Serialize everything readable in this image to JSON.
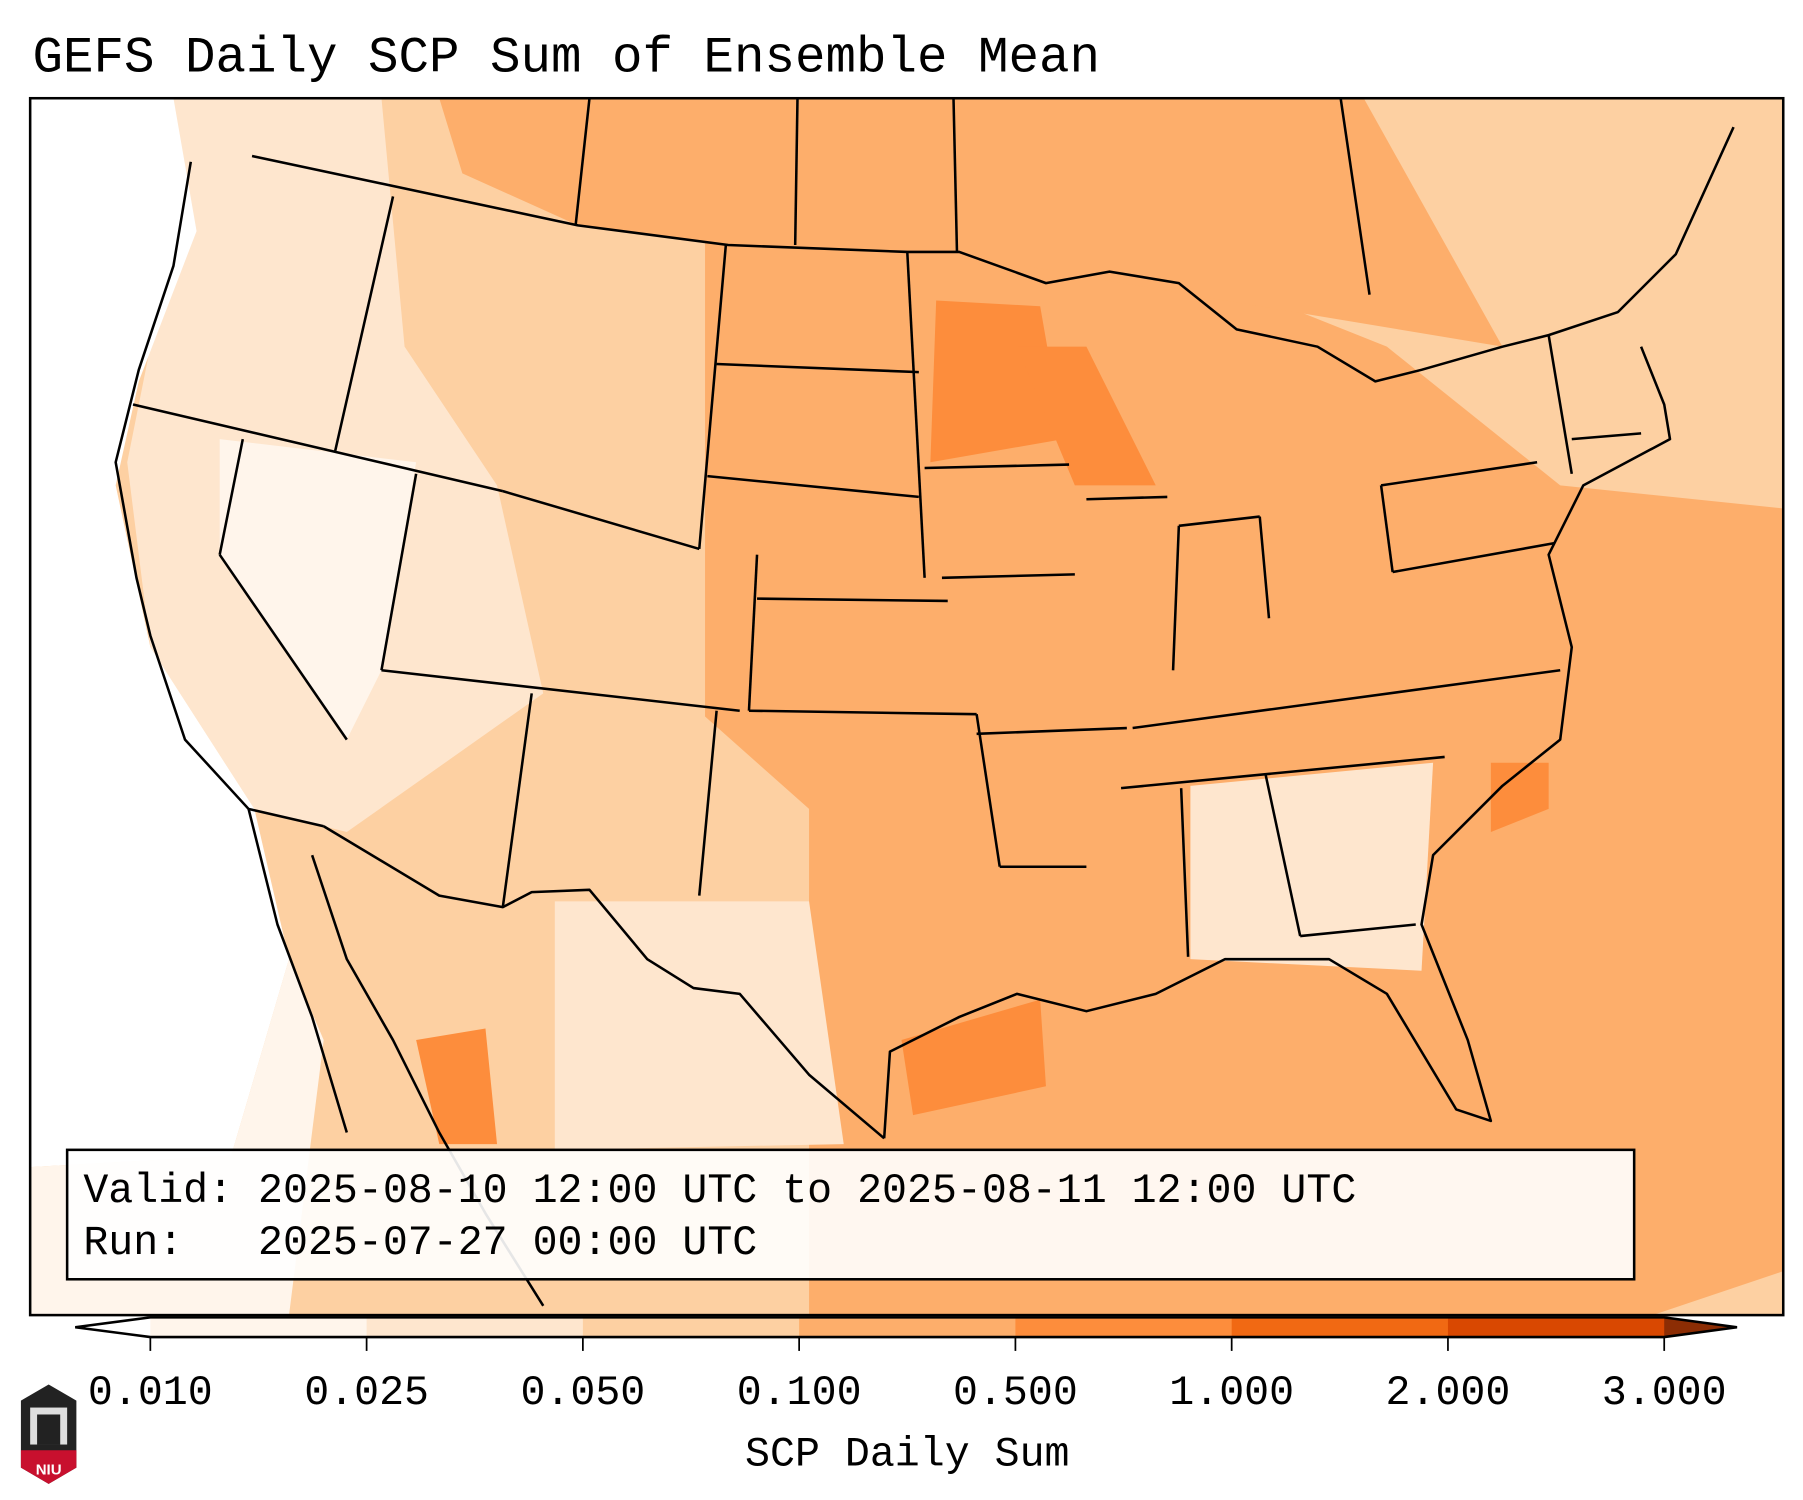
{
  "title": "GEFS Daily SCP Sum of Ensemble Mean",
  "info_box": {
    "valid_line": "Valid: 2025-08-10 12:00 UTC to 2025-08-11 12:00 UTC",
    "run_line": "Run:   2025-07-27 00:00 UTC"
  },
  "logo": {
    "text": "NIU"
  },
  "chart_data": {
    "type": "heatmap",
    "title": "GEFS Daily SCP Sum of Ensemble Mean",
    "colorbar": {
      "label": "SCP Daily Sum",
      "ticks": [
        "0.010",
        "0.025",
        "0.050",
        "0.100",
        "0.500",
        "1.000",
        "2.000",
        "3.000"
      ],
      "bin_colors": [
        "#fff5eb",
        "#fee6ce",
        "#fdd0a2",
        "#fdae6b",
        "#fd8d3c",
        "#f16913",
        "#d94801"
      ],
      "under_color": "#ffffff",
      "over_color": "#8c2d04",
      "extend": "both"
    },
    "region": "Continental United States",
    "pattern": "Highest values (0.5-1.0) over Minnesota/Wisconsin and the NW Gulf of Mexico; 0.1-0.5 over the central/eastern US and Atlantic; lowest over the West Coast and Great Basin"
  }
}
